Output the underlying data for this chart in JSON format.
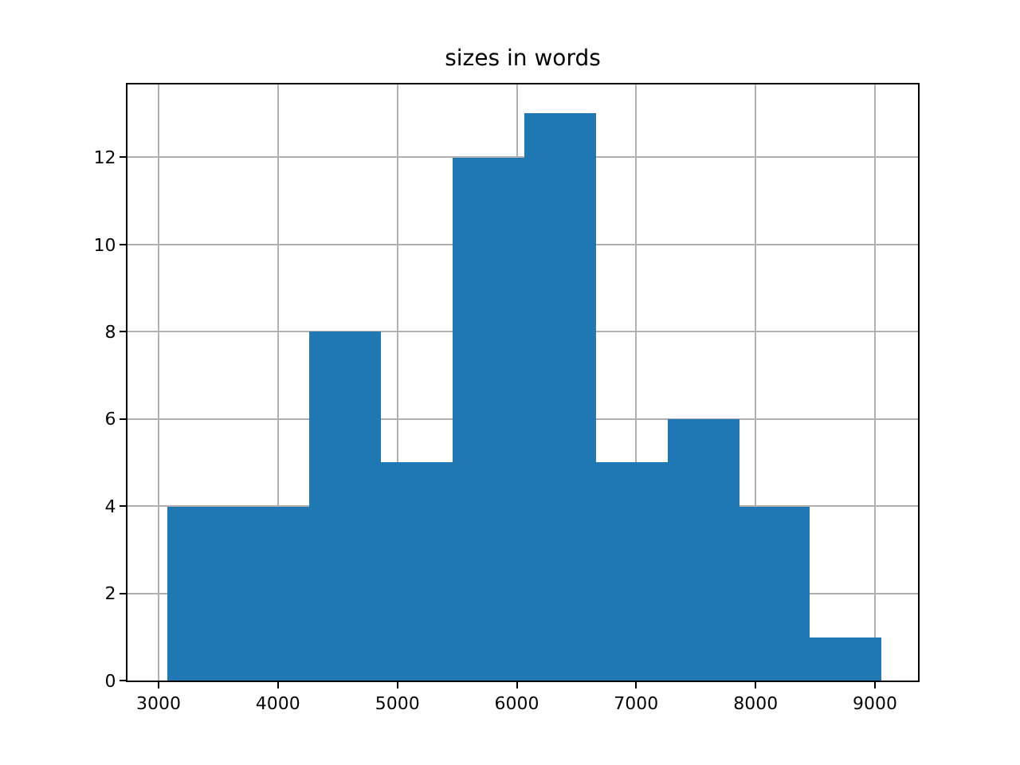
{
  "chart_data": {
    "type": "histogram",
    "title": "sizes in words",
    "bins": [
      3070,
      3670,
      4260,
      4860,
      5460,
      6060,
      6660,
      7260,
      7860,
      8450,
      9050
    ],
    "values": [
      4,
      4,
      8,
      5,
      12,
      13,
      5,
      6,
      4,
      1
    ],
    "color": "#1f77b4",
    "xlim": [
      2740,
      9360
    ],
    "xticks": [
      3000,
      4000,
      5000,
      6000,
      7000,
      8000,
      9000
    ],
    "ylim": [
      0,
      13.67
    ],
    "yticks": [
      0,
      2,
      4,
      6,
      8,
      10,
      12
    ],
    "grid": true
  }
}
